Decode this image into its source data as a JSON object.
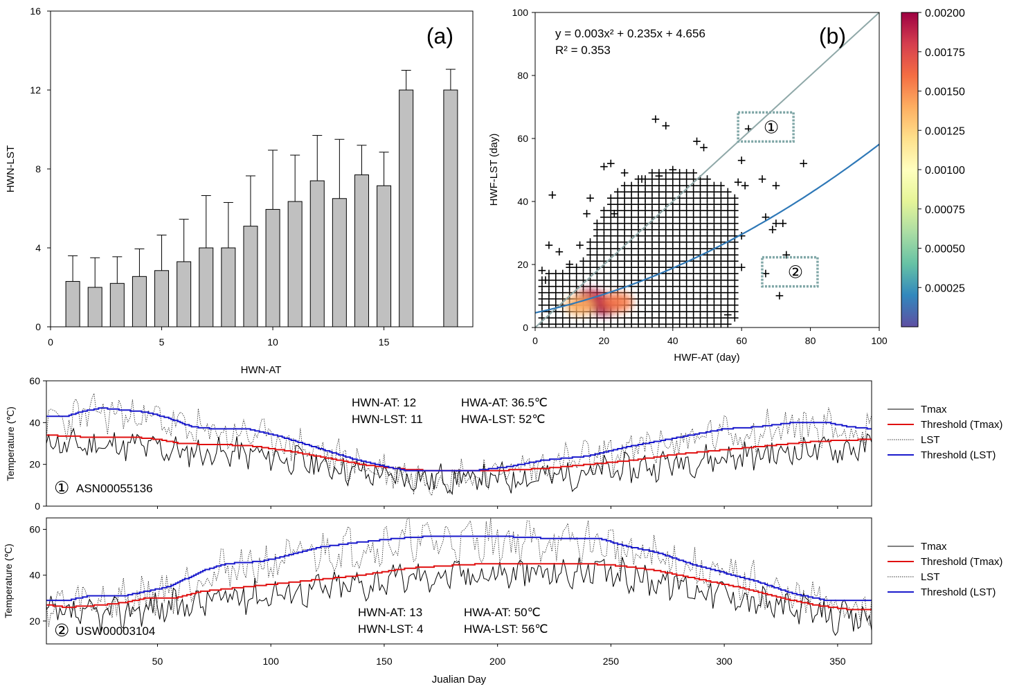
{
  "chart_data": [
    {
      "panel_label": "(a)",
      "type": "bar",
      "xlabel": "HWN-AT",
      "ylabel": "HWN-LST",
      "xlim": [
        0,
        19
      ],
      "ylim": [
        0,
        16
      ],
      "x_ticks": [
        "0",
        "5",
        "10",
        "15"
      ],
      "y_ticks": [
        "0",
        "4",
        "8",
        "12",
        "16"
      ],
      "x": [
        1,
        2,
        3,
        4,
        5,
        6,
        7,
        8,
        9,
        10,
        11,
        12,
        13,
        14,
        15,
        16,
        18
      ],
      "values": [
        2.3,
        2.0,
        2.2,
        2.55,
        2.85,
        3.3,
        4.0,
        4.0,
        5.1,
        5.95,
        6.35,
        7.4,
        6.5,
        7.7,
        7.15,
        12.0,
        12.0
      ],
      "error_upper": [
        3.6,
        3.5,
        3.55,
        3.95,
        4.65,
        5.45,
        6.65,
        6.3,
        7.65,
        8.95,
        8.7,
        9.7,
        9.5,
        9.2,
        8.85,
        13.0,
        13.05
      ],
      "bar_color": "#c0c0c0"
    },
    {
      "panel_label": "(b)",
      "type": "scatter",
      "xlabel": "HWF-AT (day)",
      "ylabel": "HWF-LST (day)",
      "xlim": [
        0,
        100
      ],
      "ylim": [
        0,
        100
      ],
      "x_ticks": [
        "0",
        "20",
        "40",
        "60",
        "80",
        "100"
      ],
      "y_ticks": [
        "0",
        "20",
        "40",
        "60",
        "80",
        "100"
      ],
      "equation": "y = 0.003x² + 0.235x + 4.656",
      "r_squared": "R² = 0.353",
      "fit": {
        "a": 0.003,
        "b": 0.235,
        "c": 4.656,
        "color": "#2e78b7"
      },
      "one_to_one_line_color": "#8fa8a8",
      "marker": "+",
      "outlier_points": [
        [
          35,
          66
        ],
        [
          38,
          64
        ],
        [
          62,
          63
        ],
        [
          47,
          59
        ],
        [
          49,
          57
        ],
        [
          20,
          51
        ],
        [
          22,
          52
        ],
        [
          26,
          49
        ],
        [
          31,
          47
        ],
        [
          40,
          50
        ],
        [
          36,
          48
        ],
        [
          60,
          53
        ],
        [
          78,
          52
        ],
        [
          66,
          47
        ],
        [
          70,
          45
        ],
        [
          61,
          45
        ],
        [
          59,
          46
        ],
        [
          16,
          41
        ],
        [
          5,
          42
        ],
        [
          15,
          36
        ],
        [
          23,
          36
        ],
        [
          70,
          33
        ],
        [
          72,
          33
        ],
        [
          73,
          23
        ],
        [
          67,
          35
        ],
        [
          69,
          31
        ],
        [
          4,
          26
        ],
        [
          7,
          24
        ],
        [
          10,
          20
        ],
        [
          13,
          26
        ],
        [
          67,
          17
        ],
        [
          60,
          19
        ],
        [
          71,
          10
        ],
        [
          50,
          9
        ],
        [
          56,
          4
        ],
        [
          2,
          18
        ],
        [
          3,
          15
        ],
        [
          60,
          29
        ]
      ],
      "annotations": [
        {
          "label": "①",
          "x": 62,
          "y": 63
        },
        {
          "label": "②",
          "x": 69,
          "y": 17
        }
      ],
      "colorbar": {
        "min": 0,
        "max": 0.002,
        "ticks": [
          "0.00025",
          "0.00050",
          "0.00075",
          "0.00100",
          "0.00125",
          "0.00150",
          "0.00175",
          "0.00200"
        ],
        "colors": [
          "#5e4fa2",
          "#3288bd",
          "#66c2a5",
          "#abdda4",
          "#e6f598",
          "#ffffbf",
          "#fee08b",
          "#fdae61",
          "#f46d43",
          "#d53e4f",
          "#9e0142"
        ]
      }
    },
    {
      "panel_label": "①",
      "station": "ASN00055136",
      "type": "line",
      "ylabel": "Temperature (℃)",
      "ylim": [
        0,
        60
      ],
      "xlim": [
        1,
        365
      ],
      "y_ticks": [
        "0",
        "20",
        "40",
        "60"
      ],
      "stats": {
        "hwn_at": "HWN-AT:   12",
        "hwa_at": "HWA-AT:   36.5℃",
        "hwn_lst": "HWN-LST: 11",
        "hwa_lst": "HWA-LST: 52℃"
      },
      "threshold_lst": [
        [
          1,
          43
        ],
        [
          10,
          43
        ],
        [
          15,
          45
        ],
        [
          25,
          47
        ],
        [
          35,
          46
        ],
        [
          45,
          45
        ],
        [
          55,
          42
        ],
        [
          65,
          38
        ],
        [
          75,
          37
        ],
        [
          90,
          37
        ],
        [
          105,
          33
        ],
        [
          120,
          28
        ],
        [
          135,
          23
        ],
        [
          150,
          19
        ],
        [
          160,
          17
        ],
        [
          190,
          17
        ],
        [
          205,
          19
        ],
        [
          220,
          22
        ],
        [
          240,
          24
        ],
        [
          255,
          28
        ],
        [
          270,
          31
        ],
        [
          285,
          34
        ],
        [
          300,
          37
        ],
        [
          315,
          38
        ],
        [
          330,
          40
        ],
        [
          345,
          40
        ],
        [
          355,
          38
        ],
        [
          365,
          37
        ]
      ],
      "threshold_tmax": [
        [
          1,
          34
        ],
        [
          20,
          33
        ],
        [
          40,
          33
        ],
        [
          50,
          32
        ],
        [
          60,
          30
        ],
        [
          90,
          29
        ],
        [
          110,
          26
        ],
        [
          125,
          23
        ],
        [
          140,
          20
        ],
        [
          155,
          18
        ],
        [
          170,
          17
        ],
        [
          200,
          17
        ],
        [
          220,
          18
        ],
        [
          240,
          20
        ],
        [
          260,
          22
        ],
        [
          280,
          25
        ],
        [
          300,
          27
        ],
        [
          320,
          29
        ],
        [
          340,
          31
        ],
        [
          365,
          32
        ]
      ],
      "legend": [
        "Tmax",
        "Threshold (Tmax)",
        "LST",
        "Threshold (LST)"
      ]
    },
    {
      "panel_label": "②",
      "station": "USW00003104",
      "type": "line",
      "ylabel": "Temperature (℃)",
      "ylim": [
        10,
        65
      ],
      "xlim": [
        1,
        365
      ],
      "x_ticks": [
        "50",
        "100",
        "150",
        "200",
        "250",
        "300",
        "350"
      ],
      "y_ticks": [
        "20",
        "40",
        "60"
      ],
      "xlabel": "Jualian Day",
      "stats": {
        "hwn_at": "HWN-AT:  13",
        "hwa_at": "HWA-AT:   50℃",
        "hwn_lst": "HWN-LST: 4",
        "hwa_lst": "HWA-LST: 56℃"
      },
      "threshold_lst": [
        [
          1,
          29
        ],
        [
          10,
          29
        ],
        [
          20,
          31
        ],
        [
          35,
          31
        ],
        [
          45,
          33
        ],
        [
          55,
          35
        ],
        [
          70,
          42
        ],
        [
          80,
          45
        ],
        [
          95,
          46
        ],
        [
          105,
          48
        ],
        [
          120,
          52
        ],
        [
          135,
          54
        ],
        [
          155,
          56
        ],
        [
          170,
          57
        ],
        [
          200,
          57
        ],
        [
          225,
          56
        ],
        [
          245,
          56
        ],
        [
          255,
          53
        ],
        [
          270,
          50
        ],
        [
          285,
          45
        ],
        [
          300,
          41
        ],
        [
          315,
          37
        ],
        [
          330,
          32
        ],
        [
          345,
          29
        ],
        [
          360,
          29
        ]
      ],
      "threshold_tmax": [
        [
          1,
          27
        ],
        [
          10,
          26
        ],
        [
          25,
          27
        ],
        [
          35,
          28
        ],
        [
          45,
          30
        ],
        [
          58,
          30
        ],
        [
          70,
          33
        ],
        [
          80,
          34
        ],
        [
          100,
          36
        ],
        [
          120,
          38
        ],
        [
          140,
          40
        ],
        [
          160,
          43
        ],
        [
          175,
          44
        ],
        [
          195,
          45
        ],
        [
          220,
          45
        ],
        [
          240,
          45
        ],
        [
          255,
          44
        ],
        [
          270,
          42
        ],
        [
          290,
          38
        ],
        [
          310,
          34
        ],
        [
          325,
          30
        ],
        [
          340,
          27
        ],
        [
          355,
          25
        ],
        [
          365,
          25
        ]
      ],
      "legend": [
        "Tmax",
        "Threshold (Tmax)",
        "LST",
        "Threshold (LST)"
      ]
    }
  ],
  "colors": {
    "tmax": "#000000",
    "threshold_tmax": "#e01010",
    "lst": "#333333",
    "threshold_lst": "#1a1acc"
  }
}
